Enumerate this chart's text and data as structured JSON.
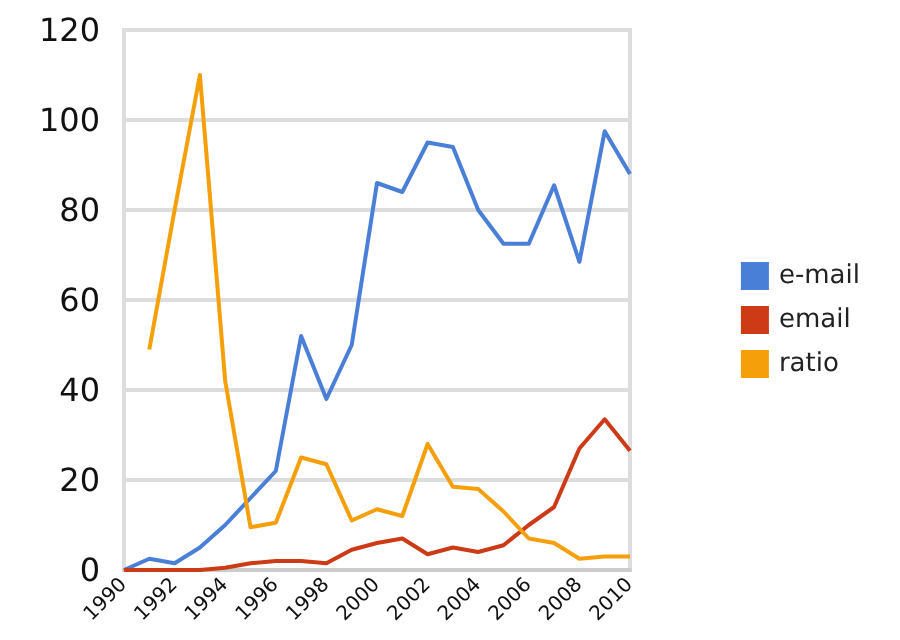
{
  "chart_data": {
    "type": "line",
    "categories": [
      "1990",
      null,
      "1992",
      null,
      "1994",
      null,
      "1996",
      null,
      "1998",
      null,
      "2000",
      null,
      "2002",
      null,
      "2004",
      null,
      "2006",
      null,
      "2008",
      null,
      "2010"
    ],
    "series": [
      {
        "name": "e-mail",
        "color": "#4a7fd8",
        "values": [
          0,
          2.5,
          1.5,
          5,
          10,
          16,
          22,
          52,
          38,
          50,
          86,
          84,
          95,
          94,
          80,
          72.5,
          72.5,
          85.5,
          68.5,
          97.5,
          88
        ]
      },
      {
        "name": "email",
        "color": "#cc3a16",
        "values": [
          0,
          0,
          0,
          0,
          0.5,
          1.5,
          2,
          2,
          1.5,
          4.5,
          6,
          7,
          3.5,
          5,
          4,
          5.5,
          10,
          14,
          27,
          33.5,
          26.5
        ]
      },
      {
        "name": "ratio",
        "color": "#f5a00a",
        "values": [
          null,
          49,
          80,
          110,
          42,
          9.5,
          10.5,
          25,
          23.5,
          11,
          13.5,
          12,
          28,
          18.5,
          18,
          13,
          7,
          6,
          2.5,
          3,
          3
        ]
      }
    ],
    "ylim": [
      0,
      120
    ],
    "yticks": [
      0,
      20,
      40,
      60,
      80,
      100,
      120
    ],
    "grid": "y",
    "legend": "right",
    "marker": "none"
  }
}
